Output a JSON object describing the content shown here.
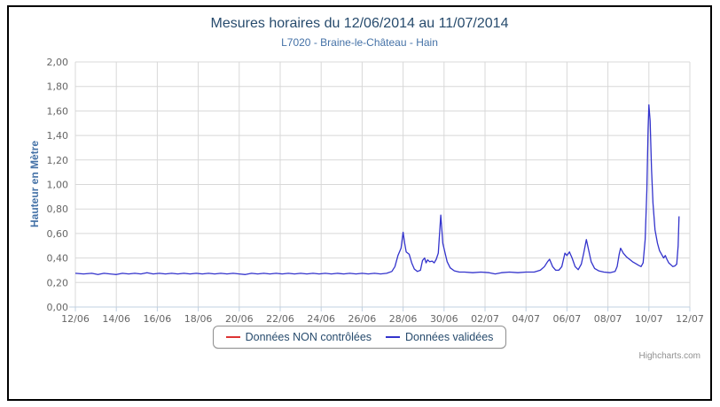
{
  "credits": {
    "label": "Highcharts.com"
  },
  "colors": {
    "title": "#274b6d",
    "subtitle": "#4572a7",
    "y_axis_title": "#4572a7",
    "axis_label": "#666666",
    "gridline": "#d8d8d8",
    "axis_line": "#c0d0e0",
    "legend_text": "#274b6d",
    "credits_text": "#909090",
    "frame_border": "#000000",
    "series_red": "#dd3333",
    "series_blue": "#3333cc"
  },
  "chart_data": {
    "type": "line",
    "title": "Mesures horaires du 12/06/2014 au 11/07/2014",
    "subtitle": "L7020 - Braine-le-Château - Hain",
    "xlabel": "",
    "ylabel": "Hauteur en Mètre",
    "ylim": [
      0,
      2
    ],
    "grid": true,
    "legend_position": "bottom",
    "y_ticks": [
      {
        "label": "0,00",
        "value": 0.0
      },
      {
        "label": "0,20",
        "value": 0.2
      },
      {
        "label": "0,40",
        "value": 0.4
      },
      {
        "label": "0,60",
        "value": 0.6
      },
      {
        "label": "0,80",
        "value": 0.8
      },
      {
        "label": "1,00",
        "value": 1.0
      },
      {
        "label": "1,20",
        "value": 1.2
      },
      {
        "label": "1,40",
        "value": 1.4
      },
      {
        "label": "1,60",
        "value": 1.6
      },
      {
        "label": "1,80",
        "value": 1.8
      },
      {
        "label": "2,00",
        "value": 2.0
      }
    ],
    "x_range_days": [
      0,
      30
    ],
    "x_unit": "days since 12/06/2014 00:00",
    "x_ticks": [
      {
        "label": "12/06",
        "day": 0
      },
      {
        "label": "14/06",
        "day": 2
      },
      {
        "label": "16/06",
        "day": 4
      },
      {
        "label": "18/06",
        "day": 6
      },
      {
        "label": "20/06",
        "day": 8
      },
      {
        "label": "22/06",
        "day": 10
      },
      {
        "label": "24/06",
        "day": 12
      },
      {
        "label": "26/06",
        "day": 14
      },
      {
        "label": "28/06",
        "day": 16
      },
      {
        "label": "30/06",
        "day": 18
      },
      {
        "label": "02/07",
        "day": 20
      },
      {
        "label": "04/07",
        "day": 22
      },
      {
        "label": "06/07",
        "day": 24
      },
      {
        "label": "08/07",
        "day": 26
      },
      {
        "label": "10/07",
        "day": 28
      },
      {
        "label": "12/07",
        "day": 30
      }
    ],
    "series": [
      {
        "name": "Données NON contrôlées",
        "color": "#dd3333",
        "points": []
      },
      {
        "name": "Données validées",
        "color": "#3333cc",
        "points": [
          [
            0,
            0.275
          ],
          [
            0.4,
            0.27
          ],
          [
            0.8,
            0.275
          ],
          [
            1.1,
            0.265
          ],
          [
            1.4,
            0.275
          ],
          [
            1.7,
            0.27
          ],
          [
            2.0,
            0.265
          ],
          [
            2.3,
            0.275
          ],
          [
            2.6,
            0.27
          ],
          [
            2.9,
            0.275
          ],
          [
            3.2,
            0.27
          ],
          [
            3.5,
            0.28
          ],
          [
            3.8,
            0.27
          ],
          [
            4.1,
            0.275
          ],
          [
            4.4,
            0.27
          ],
          [
            4.7,
            0.275
          ],
          [
            5.0,
            0.27
          ],
          [
            5.3,
            0.275
          ],
          [
            5.6,
            0.27
          ],
          [
            5.9,
            0.275
          ],
          [
            6.2,
            0.27
          ],
          [
            6.5,
            0.275
          ],
          [
            6.8,
            0.27
          ],
          [
            7.1,
            0.275
          ],
          [
            7.4,
            0.27
          ],
          [
            7.7,
            0.275
          ],
          [
            8.0,
            0.27
          ],
          [
            8.3,
            0.265
          ],
          [
            8.6,
            0.275
          ],
          [
            8.9,
            0.27
          ],
          [
            9.2,
            0.275
          ],
          [
            9.5,
            0.27
          ],
          [
            9.8,
            0.275
          ],
          [
            10.1,
            0.27
          ],
          [
            10.4,
            0.275
          ],
          [
            10.7,
            0.27
          ],
          [
            11.0,
            0.275
          ],
          [
            11.3,
            0.27
          ],
          [
            11.6,
            0.275
          ],
          [
            11.9,
            0.27
          ],
          [
            12.2,
            0.275
          ],
          [
            12.5,
            0.27
          ],
          [
            12.8,
            0.275
          ],
          [
            13.1,
            0.27
          ],
          [
            13.4,
            0.275
          ],
          [
            13.7,
            0.27
          ],
          [
            14.0,
            0.275
          ],
          [
            14.3,
            0.27
          ],
          [
            14.6,
            0.275
          ],
          [
            14.9,
            0.27
          ],
          [
            15.2,
            0.275
          ],
          [
            15.45,
            0.29
          ],
          [
            15.6,
            0.33
          ],
          [
            15.75,
            0.42
          ],
          [
            15.9,
            0.48
          ],
          [
            16.0,
            0.61
          ],
          [
            16.08,
            0.52
          ],
          [
            16.15,
            0.45
          ],
          [
            16.3,
            0.43
          ],
          [
            16.42,
            0.36
          ],
          [
            16.55,
            0.31
          ],
          [
            16.7,
            0.29
          ],
          [
            16.85,
            0.3
          ],
          [
            16.95,
            0.38
          ],
          [
            17.05,
            0.4
          ],
          [
            17.12,
            0.36
          ],
          [
            17.2,
            0.385
          ],
          [
            17.3,
            0.37
          ],
          [
            17.42,
            0.375
          ],
          [
            17.52,
            0.36
          ],
          [
            17.62,
            0.39
          ],
          [
            17.72,
            0.44
          ],
          [
            17.84,
            0.75
          ],
          [
            17.94,
            0.52
          ],
          [
            18.05,
            0.44
          ],
          [
            18.15,
            0.37
          ],
          [
            18.3,
            0.32
          ],
          [
            18.5,
            0.295
          ],
          [
            18.75,
            0.285
          ],
          [
            19.0,
            0.285
          ],
          [
            19.4,
            0.28
          ],
          [
            19.8,
            0.285
          ],
          [
            20.2,
            0.28
          ],
          [
            20.5,
            0.27
          ],
          [
            20.8,
            0.28
          ],
          [
            21.2,
            0.285
          ],
          [
            21.6,
            0.28
          ],
          [
            22.0,
            0.285
          ],
          [
            22.4,
            0.285
          ],
          [
            22.7,
            0.3
          ],
          [
            22.9,
            0.33
          ],
          [
            23.05,
            0.37
          ],
          [
            23.15,
            0.39
          ],
          [
            23.3,
            0.33
          ],
          [
            23.45,
            0.3
          ],
          [
            23.6,
            0.3
          ],
          [
            23.75,
            0.33
          ],
          [
            23.9,
            0.44
          ],
          [
            24.0,
            0.42
          ],
          [
            24.12,
            0.45
          ],
          [
            24.25,
            0.4
          ],
          [
            24.4,
            0.33
          ],
          [
            24.55,
            0.305
          ],
          [
            24.7,
            0.35
          ],
          [
            24.82,
            0.44
          ],
          [
            24.95,
            0.55
          ],
          [
            25.05,
            0.47
          ],
          [
            25.18,
            0.37
          ],
          [
            25.35,
            0.315
          ],
          [
            25.55,
            0.295
          ],
          [
            25.8,
            0.285
          ],
          [
            26.1,
            0.28
          ],
          [
            26.35,
            0.29
          ],
          [
            26.45,
            0.33
          ],
          [
            26.55,
            0.43
          ],
          [
            26.62,
            0.48
          ],
          [
            26.75,
            0.44
          ],
          [
            26.9,
            0.41
          ],
          [
            27.05,
            0.39
          ],
          [
            27.2,
            0.37
          ],
          [
            27.35,
            0.355
          ],
          [
            27.5,
            0.34
          ],
          [
            27.62,
            0.33
          ],
          [
            27.72,
            0.36
          ],
          [
            27.82,
            0.55
          ],
          [
            27.9,
            0.95
          ],
          [
            27.96,
            1.45
          ],
          [
            28.0,
            1.65
          ],
          [
            28.06,
            1.52
          ],
          [
            28.13,
            1.12
          ],
          [
            28.2,
            0.85
          ],
          [
            28.3,
            0.63
          ],
          [
            28.42,
            0.52
          ],
          [
            28.52,
            0.46
          ],
          [
            28.62,
            0.43
          ],
          [
            28.72,
            0.4
          ],
          [
            28.8,
            0.42
          ],
          [
            28.88,
            0.39
          ],
          [
            28.97,
            0.36
          ],
          [
            29.07,
            0.345
          ],
          [
            29.17,
            0.33
          ],
          [
            29.27,
            0.335
          ],
          [
            29.36,
            0.35
          ],
          [
            29.43,
            0.5
          ],
          [
            29.47,
            0.74
          ]
        ]
      }
    ]
  }
}
